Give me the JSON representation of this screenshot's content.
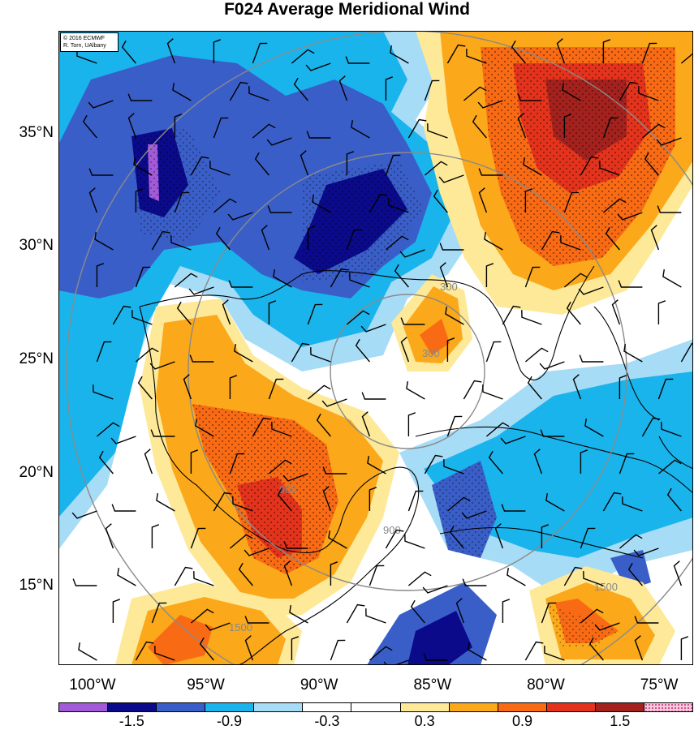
{
  "title": "F024 Average Meridional Wind",
  "credit": {
    "line1": "© 2016 ECMWF",
    "line2": "R. Torn, UAlbany"
  },
  "map": {
    "lat_range": [
      11.5,
      39.5
    ],
    "lon_range": [
      -101.5,
      -73.5
    ],
    "lat_ticks": [
      {
        "value": 35,
        "label": "35°N"
      },
      {
        "value": 30,
        "label": "30°N"
      },
      {
        "value": 25,
        "label": "25°N"
      },
      {
        "value": 20,
        "label": "20°N"
      },
      {
        "value": 15,
        "label": "15°N"
      }
    ],
    "lon_ticks": [
      {
        "value": -100,
        "label": "100°W"
      },
      {
        "value": -95,
        "label": "95°W"
      },
      {
        "value": -90,
        "label": "90°W"
      },
      {
        "value": -85,
        "label": "85°W"
      },
      {
        "value": -80,
        "label": "80°W"
      },
      {
        "value": -75,
        "label": "75°W"
      }
    ],
    "storm_center": {
      "lon": -87.0,
      "lat": 25.2
    },
    "radius_rings": [
      {
        "label": "300",
        "radius_km": 300
      },
      {
        "label": "900",
        "radius_km": 900
      },
      {
        "label": "1500",
        "radius_km": 1500
      }
    ]
  },
  "colorbar": {
    "colors": [
      "#a35ad8",
      "#0a0a8a",
      "#3a5ec8",
      "#1ab4ec",
      "#a6dcf6",
      "#ffffff",
      "#ffffff",
      "#fde998",
      "#fba81a",
      "#f96a14",
      "#e4331c",
      "#a4221e",
      "#f8c8e0"
    ],
    "labels": [
      "-1.5",
      "-0.9",
      "-0.3",
      "0.3",
      "0.9",
      "1.5"
    ],
    "label_positions": [
      1.5,
      3.5,
      5.5,
      7.5,
      9.5,
      11.5
    ]
  },
  "colors": {
    "accent_positive": "#f96a14",
    "accent_negative": "#3a5ec8"
  }
}
